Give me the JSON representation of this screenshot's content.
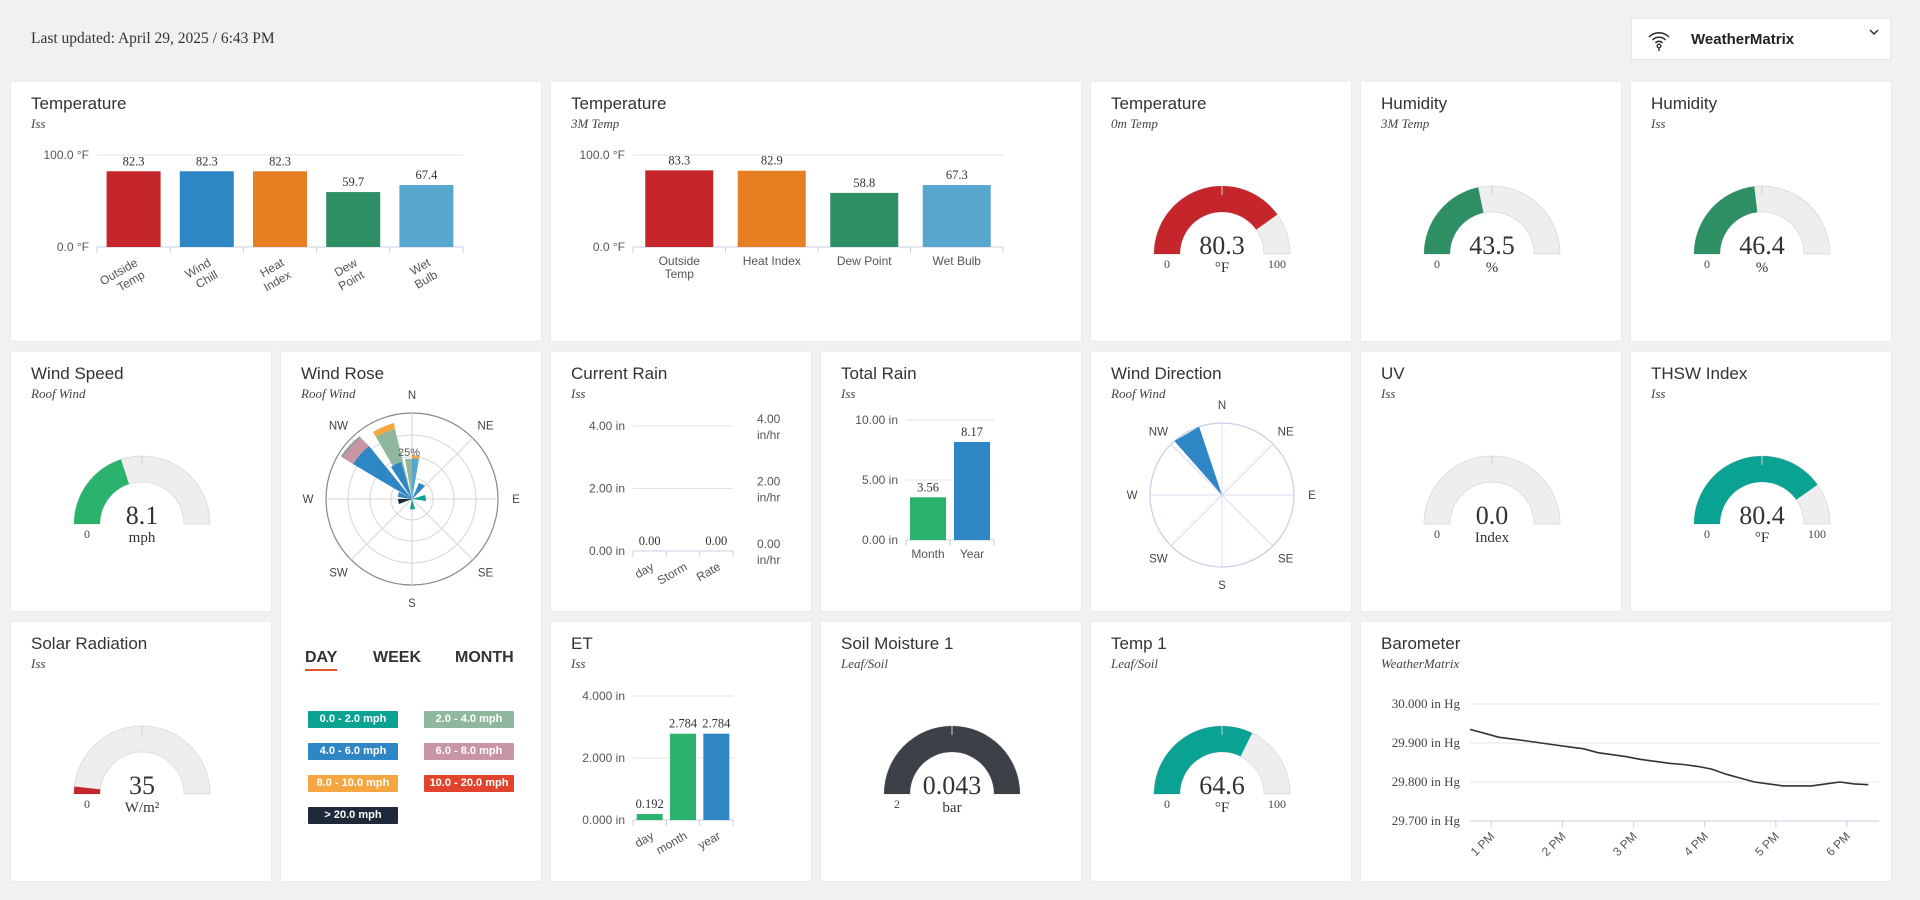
{
  "header": {
    "last_updated": "Last updated: April 29, 2025 / 6:43 PM",
    "station_name": "WeatherMatrix"
  },
  "colors": {
    "red": "#c4262b",
    "blue": "#2f86c5",
    "orange": "#e67e22",
    "green_dark": "#2d8f63",
    "light_blue": "#56a6cd",
    "green": "#2bb36d",
    "teal": "#0aa292",
    "slate": "#3b4147",
    "gauge_track": "#eeeeee"
  },
  "cards": {
    "temp1": {
      "title": "Temperature",
      "subtitle": "Iss"
    },
    "temp2": {
      "title": "Temperature",
      "subtitle": "3M Temp"
    },
    "temp3": {
      "title": "Temperature",
      "subtitle": "0m Temp"
    },
    "hum1": {
      "title": "Humidity",
      "subtitle": "3M Temp"
    },
    "hum2": {
      "title": "Humidity",
      "subtitle": "Iss"
    },
    "wind_speed": {
      "title": "Wind Speed",
      "subtitle": "Roof Wind"
    },
    "wind_rose": {
      "title": "Wind Rose",
      "subtitle": "Roof Wind"
    },
    "current_rain": {
      "title": "Current Rain",
      "subtitle": "Iss"
    },
    "total_rain": {
      "title": "Total Rain",
      "subtitle": "Iss"
    },
    "wind_dir": {
      "title": "Wind Direction",
      "subtitle": "Roof Wind"
    },
    "uv": {
      "title": "UV",
      "subtitle": "Iss"
    },
    "thsw": {
      "title": "THSW Index",
      "subtitle": "Iss"
    },
    "solar": {
      "title": "Solar Radiation",
      "subtitle": "Iss"
    },
    "et": {
      "title": "ET",
      "subtitle": "Iss"
    },
    "soil": {
      "title": "Soil Moisture 1",
      "subtitle": "Leaf/Soil"
    },
    "temp_leaf": {
      "title": "Temp 1",
      "subtitle": "Leaf/Soil"
    },
    "barometer": {
      "title": "Barometer",
      "subtitle": "WeatherMatrix"
    }
  },
  "gauges": {
    "temp3": {
      "value": "80.3",
      "unit": "°F",
      "min": "0",
      "max": "100",
      "fraction": 0.803,
      "color": "#c4262b"
    },
    "hum1": {
      "value": "43.5",
      "unit": "%",
      "min": "0",
      "max": "",
      "fraction": 0.435,
      "color": "#2d8f63"
    },
    "hum2": {
      "value": "46.4",
      "unit": "%",
      "min": "0",
      "max": "",
      "fraction": 0.464,
      "color": "#2d8f63"
    },
    "wind_speed": {
      "value": "8.1",
      "unit": "mph",
      "min": "0",
      "max": "",
      "fraction": 0.4,
      "color": "#2bb36d"
    },
    "uv": {
      "value": "0.0",
      "unit": "Index",
      "min": "0",
      "max": "",
      "fraction": 0,
      "color": "#2bb36d"
    },
    "thsw": {
      "value": "80.4",
      "unit": "°F",
      "min": "0",
      "max": "100",
      "fraction": 0.804,
      "color": "#0aa292"
    },
    "solar": {
      "value": "35",
      "unit": "W/m²",
      "min": "0",
      "max": "",
      "fraction": 0.035,
      "color": "#c4262b"
    },
    "soil": {
      "value": "0.043",
      "unit": "bar",
      "min": "2",
      "max": "",
      "fraction": 1.0,
      "color": "#3b4147"
    },
    "temp_leaf": {
      "value": "64.6",
      "unit": "°F",
      "min": "0",
      "max": "100",
      "fraction": 0.646,
      "color": "#0aa292"
    }
  },
  "wind_rose": {
    "directions": [
      "N",
      "NE",
      "E",
      "SE",
      "S",
      "SW",
      "W",
      "NW"
    ],
    "ring_label": "25%",
    "tabs": [
      "DAY",
      "WEEK",
      "MONTH"
    ],
    "active_tab": "DAY",
    "legend": [
      {
        "label": "0.0 - 2.0 mph",
        "color": "#0aa292"
      },
      {
        "label": "2.0 - 4.0 mph",
        "color": "#8fb79d"
      },
      {
        "label": "4.0 - 6.0 mph",
        "color": "#2f86c5"
      },
      {
        "label": "6.0 - 8.0 mph",
        "color": "#c795a3"
      },
      {
        "label": "8.0 - 10.0 mph",
        "color": "#f5a640"
      },
      {
        "label": "10.0 - 20.0 mph",
        "color": "#e2432c"
      },
      {
        "label": "> 20.0 mph",
        "color": "#1e2a3a"
      }
    ]
  },
  "wind_direction": {
    "directions": [
      "N",
      "NE",
      "E",
      "SE",
      "S",
      "SW",
      "W",
      "NW"
    ],
    "pointer_deg": 330
  },
  "chart_data": [
    {
      "id": "temp_iss",
      "type": "bar",
      "categories": [
        "Outside Temp",
        "Wind Chill",
        "Heat Index",
        "Dew Point",
        "Wet Bulb"
      ],
      "values": [
        82.3,
        82.3,
        82.3,
        59.7,
        67.4
      ],
      "value_labels": [
        "82.3",
        "82.3",
        "82.3",
        "59.7",
        "67.4"
      ],
      "colors": [
        "#c4262b",
        "#2f86c5",
        "#e67e22",
        "#2d8f63",
        "#56a6cd"
      ],
      "ylim": [
        0,
        100
      ],
      "y_ticks": [
        "100.0 °F",
        "0.0 °F"
      ]
    },
    {
      "id": "temp_3m",
      "type": "bar",
      "categories": [
        "Outside Temp",
        "Heat Index",
        "Dew Point",
        "Wet Bulb"
      ],
      "values": [
        83.3,
        82.9,
        58.8,
        67.3
      ],
      "value_labels": [
        "83.3",
        "82.9",
        "58.8",
        "67.3"
      ],
      "colors": [
        "#c4262b",
        "#e67e22",
        "#2d8f63",
        "#56a6cd"
      ],
      "ylim": [
        0,
        100
      ],
      "y_ticks": [
        "100.0 °F",
        "0.0 °F"
      ]
    },
    {
      "id": "current_rain",
      "type": "bar",
      "categories": [
        "day",
        "Storm",
        "Rate"
      ],
      "values": [
        0,
        0,
        0
      ],
      "value_labels": [
        "0.00",
        "",
        "0.00"
      ],
      "ylim": [
        0,
        4
      ],
      "y_ticks": [
        "4.00 in",
        "2.00 in",
        "0.00 in"
      ],
      "y2_ticks": [
        "4.00 in/hr",
        "2.00 in/hr",
        "0.00 in/hr"
      ]
    },
    {
      "id": "total_rain",
      "type": "bar",
      "categories": [
        "Month",
        "Year"
      ],
      "values": [
        3.56,
        8.17
      ],
      "value_labels": [
        "3.56",
        "8.17"
      ],
      "colors": [
        "#2bb36d",
        "#2f86c5"
      ],
      "ylim": [
        0,
        10
      ],
      "y_ticks": [
        "10.00 in",
        "5.00 in",
        "0.00 in"
      ]
    },
    {
      "id": "et",
      "type": "bar",
      "categories": [
        "day",
        "month",
        "year"
      ],
      "values": [
        0.192,
        2.784,
        2.784
      ],
      "value_labels": [
        "0.192",
        "2.784",
        "2.784"
      ],
      "colors": [
        "#2bb36d",
        "#2bb36d",
        "#2f86c5"
      ],
      "ylim": [
        0,
        4
      ],
      "y_ticks": [
        "4.000 in",
        "2.000 in",
        "0.000 in"
      ]
    },
    {
      "id": "barometer",
      "type": "line",
      "x_ticks": [
        "1 PM",
        "2 PM",
        "3 PM",
        "4 PM",
        "5 PM",
        "6 PM"
      ],
      "y_ticks": [
        "30.000 in Hg",
        "29.900 in Hg",
        "29.800 in Hg",
        "29.700 in Hg"
      ],
      "ylim": [
        29.7,
        30.0
      ],
      "x": [
        0.0,
        0.2,
        0.4,
        0.6,
        0.8,
        1.0,
        1.2,
        1.4,
        1.6,
        1.8,
        2.0,
        2.2,
        2.4,
        2.6,
        2.8,
        3.0,
        3.2,
        3.4,
        3.6,
        3.8,
        4.0,
        4.2,
        4.4,
        4.6,
        4.8,
        5.0,
        5.2,
        5.4,
        5.6
      ],
      "y": [
        29.935,
        29.925,
        29.915,
        29.91,
        29.905,
        29.9,
        29.895,
        29.89,
        29.885,
        29.875,
        29.87,
        29.865,
        29.858,
        29.853,
        29.848,
        29.845,
        29.84,
        29.833,
        29.82,
        29.81,
        29.8,
        29.795,
        29.79,
        29.79,
        29.79,
        29.795,
        29.8,
        29.795,
        29.793
      ]
    }
  ]
}
